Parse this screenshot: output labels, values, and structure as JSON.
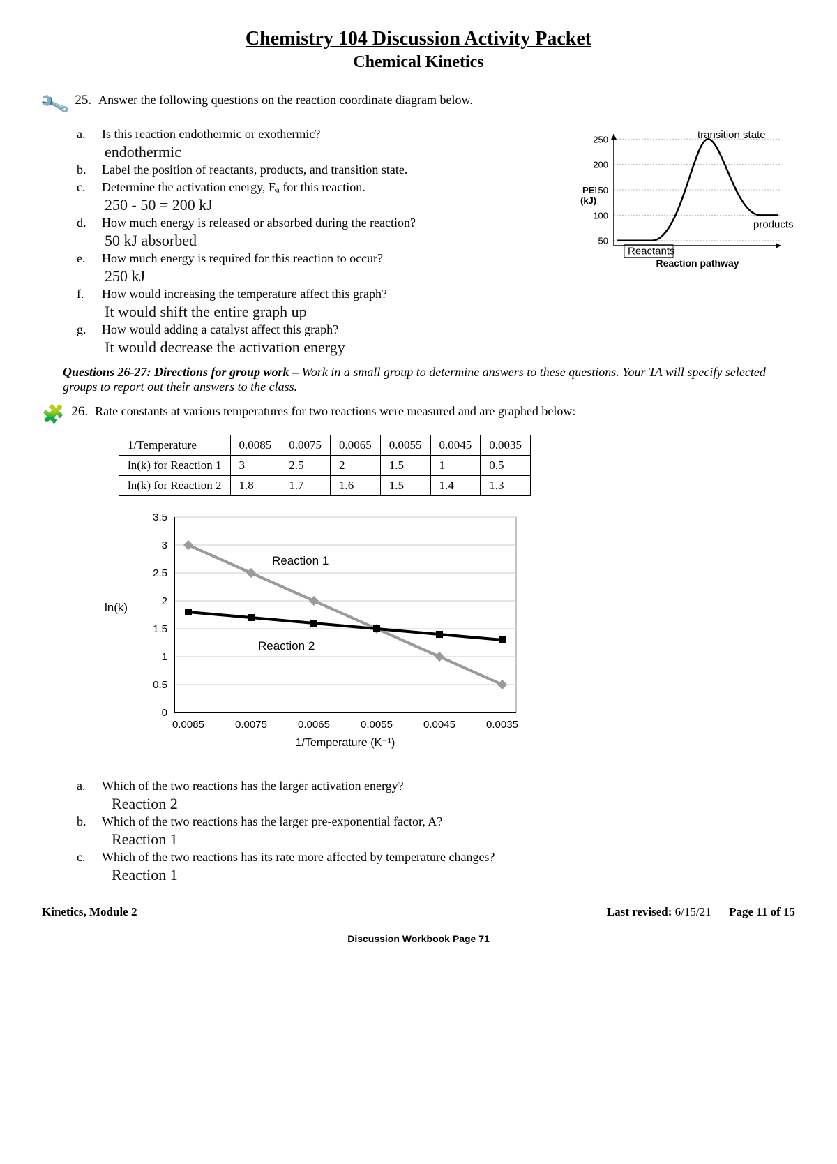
{
  "header": {
    "main": "Chemistry 104 Discussion Activity Packet",
    "sub": "Chemical Kinetics"
  },
  "q25": {
    "num": "25.",
    "prompt": "Answer the following questions on the reaction coordinate diagram below.",
    "items": {
      "a": {
        "lbl": "a.",
        "text": "Is this reaction endothermic or exothermic?",
        "ans": "endothermic"
      },
      "b": {
        "lbl": "b.",
        "text": "Label the position of reactants, products, and transition state."
      },
      "c": {
        "lbl": "c.",
        "text": "Determine the activation energy, Eₐ for this reaction.",
        "ans": "250 - 50 = 200 kJ"
      },
      "d": {
        "lbl": "d.",
        "text": "How much energy is released or absorbed during the reaction?",
        "ans": "50 kJ absorbed"
      },
      "e": {
        "lbl": "e.",
        "text": "How much energy is required for this reaction to occur?",
        "ans": "250 kJ"
      },
      "f": {
        "lbl": "f.",
        "text": "How would increasing the temperature affect this graph?",
        "ans": "It would shift the entire graph up"
      },
      "g": {
        "lbl": "g.",
        "text": "How would adding a catalyst affect this graph?",
        "ans": "It would decrease the activation energy"
      }
    }
  },
  "energy_diagram": {
    "yaxis_label": "PE (kJ)",
    "xaxis_label": "Reaction pathway",
    "yticks": [
      50,
      100,
      150,
      200,
      250
    ],
    "ylim": [
      40,
      260
    ],
    "grid_color": "#bbb",
    "curve_color": "#000",
    "handwritten": {
      "transition": "transition state",
      "products": "products",
      "reactants": "Reactants"
    }
  },
  "directions": {
    "lead": "Questions 26-27:  Directions for group work –",
    "body": " Work in a small group to determine answers to these questions.  Your TA will specify selected groups to report out their answers to the class."
  },
  "q26": {
    "num": "26.",
    "prompt": "Rate constants at various temperatures for two reactions were measured and are graphed below:",
    "table": {
      "headers": [
        "1/Temperature",
        "0.0085",
        "0.0075",
        "0.0065",
        "0.0055",
        "0.0045",
        "0.0035"
      ],
      "rows": [
        [
          "ln(k) for Reaction 1",
          "3",
          "2.5",
          "2",
          "1.5",
          "1",
          "0.5"
        ],
        [
          "ln(k) for Reaction 2",
          "1.8",
          "1.7",
          "1.6",
          "1.5",
          "1.4",
          "1.3"
        ]
      ]
    },
    "chart": {
      "type": "line",
      "yaxis": "ln(k)",
      "xaxis": "1/Temperature  (K⁻¹)",
      "ylim": [
        0,
        3.5
      ],
      "yticks": [
        0,
        0.5,
        1,
        1.5,
        2,
        2.5,
        3,
        3.5
      ],
      "xticks": [
        "0.0085",
        "0.0075",
        "0.0065",
        "0.0055",
        "0.0045",
        "0.0035"
      ],
      "series": {
        "r1": {
          "label": "Reaction 1",
          "color": "#9a9a9a",
          "values": [
            3,
            2.5,
            2,
            1.5,
            1,
            0.5
          ]
        },
        "r2": {
          "label": "Reaction 2",
          "color": "#000000",
          "values": [
            1.8,
            1.7,
            1.6,
            1.5,
            1.4,
            1.3
          ]
        }
      },
      "grid_color": "#cccccc",
      "bg": "#ffffff"
    },
    "subitems": {
      "a": {
        "lbl": "a.",
        "text": "Which of the two reactions has the larger activation energy?",
        "ans": "Reaction 2"
      },
      "b": {
        "lbl": "b.",
        "text": "Which of the two reactions has the larger pre-exponential factor, A?",
        "ans": "Reaction 1"
      },
      "c": {
        "lbl": "c.",
        "text": "Which of the two reactions has its rate more affected by temperature changes?",
        "ans": "Reaction 1"
      }
    }
  },
  "footer": {
    "module": "Kinetics, Module 2",
    "revised_lbl": "Last revised:",
    "revised": " 6/15/21",
    "page": "Page 11 of 15",
    "bottom": "Discussion Workbook Page 71"
  }
}
